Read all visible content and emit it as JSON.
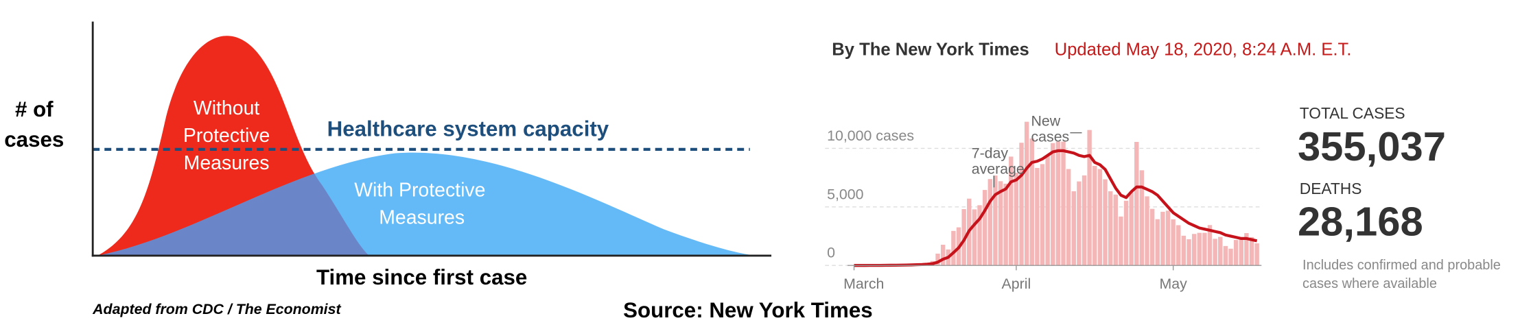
{
  "diagram": {
    "y_label": [
      "# of",
      "cases"
    ],
    "x_label": "Time since first case",
    "red_label": [
      "Without",
      "Protective",
      "Measures"
    ],
    "blue_label": [
      "With Protective",
      "Measures"
    ],
    "capacity_label": "Healthcare system capacity",
    "credit": "Adapted from CDC / The Economist"
  },
  "source": "Source: New York Times",
  "byline": "By The New York Times",
  "updated": "Updated May 18, 2020, 8:24 A.M. E.T.",
  "stats": [
    {
      "label": "TOTAL CASES",
      "value": "355,037"
    },
    {
      "label": "DEATHS",
      "value": "28,168"
    }
  ],
  "note": [
    "Includes confirmed and probable",
    "cases where available"
  ],
  "chart_data": {
    "type": "bar",
    "categories": [
      "March",
      null,
      null,
      null,
      null,
      null,
      null,
      null,
      null,
      null,
      null,
      null,
      null,
      null,
      null,
      null,
      null,
      null,
      null,
      null,
      null,
      null,
      null,
      null,
      null,
      null,
      null,
      null,
      null,
      null,
      null,
      "April",
      null,
      null,
      null,
      null,
      null,
      null,
      null,
      null,
      null,
      null,
      null,
      null,
      null,
      null,
      null,
      null,
      null,
      null,
      null,
      null,
      null,
      null,
      null,
      null,
      null,
      null,
      null,
      null,
      null,
      "May",
      null,
      null,
      null,
      null,
      null,
      null,
      null,
      null,
      null,
      null,
      null,
      null,
      null,
      null,
      null,
      null
    ],
    "series": [
      {
        "name": "New cases",
        "color": "#f4b6b6",
        "values": [
          0,
          0,
          1,
          2,
          11,
          22,
          44,
          16,
          36,
          47,
          58,
          95,
          154,
          140,
          219,
          380,
          1008,
          1769,
          1366,
          2950,
          3254,
          4812,
          5707,
          4790,
          5145,
          6448,
          7377,
          7681,
          7195,
          6984,
          9298,
          7917,
          10482,
          12274,
          10841,
          8327,
          8658,
          9353,
          10453,
          10575,
          10575,
          8236,
          6337,
          7177,
          7690,
          11571,
          8505,
          8236,
          7358,
          6337,
          6054,
          4178,
          5526,
          6243,
          10553,
          8130,
          5902,
          4833,
          3951,
          4585,
          4681,
          3942,
          3439,
          2538,
          2239,
          2690,
          2786,
          2786,
          3448,
          2273,
          2438,
          1660,
          1430,
          2176,
          2390,
          2762,
          2419,
          1889
        ]
      },
      {
        "name": "7-day average",
        "color": "#c6131b",
        "values": [
          0,
          0,
          0,
          1,
          3,
          6,
          13,
          14,
          19,
          25,
          33,
          44,
          64,
          79,
          107,
          147,
          280,
          531,
          694,
          1093,
          1513,
          2152,
          2969,
          3496,
          3982,
          4691,
          5477,
          6045,
          6312,
          6535,
          7140,
          7300,
          7700,
          8300,
          8800,
          8900,
          9100,
          9400,
          9700,
          9800,
          9800,
          9700,
          9600,
          9400,
          9300,
          9400,
          8800,
          8600,
          8200,
          7400,
          6600,
          6000,
          5800,
          6300,
          6700,
          6700,
          6500,
          6300,
          6000,
          5500,
          5000,
          4500,
          4200,
          3900,
          3600,
          3400,
          3200,
          3100,
          3000,
          2900,
          2800,
          2600,
          2500,
          2400,
          2300,
          2300,
          2200,
          2100
        ]
      }
    ],
    "ylim": [
      0,
      12500
    ],
    "yticks": [
      0,
      {
        "value": 5000,
        "label": "5,000"
      },
      {
        "value": 10000,
        "label": "10,000 cases"
      }
    ],
    "grid": true
  }
}
